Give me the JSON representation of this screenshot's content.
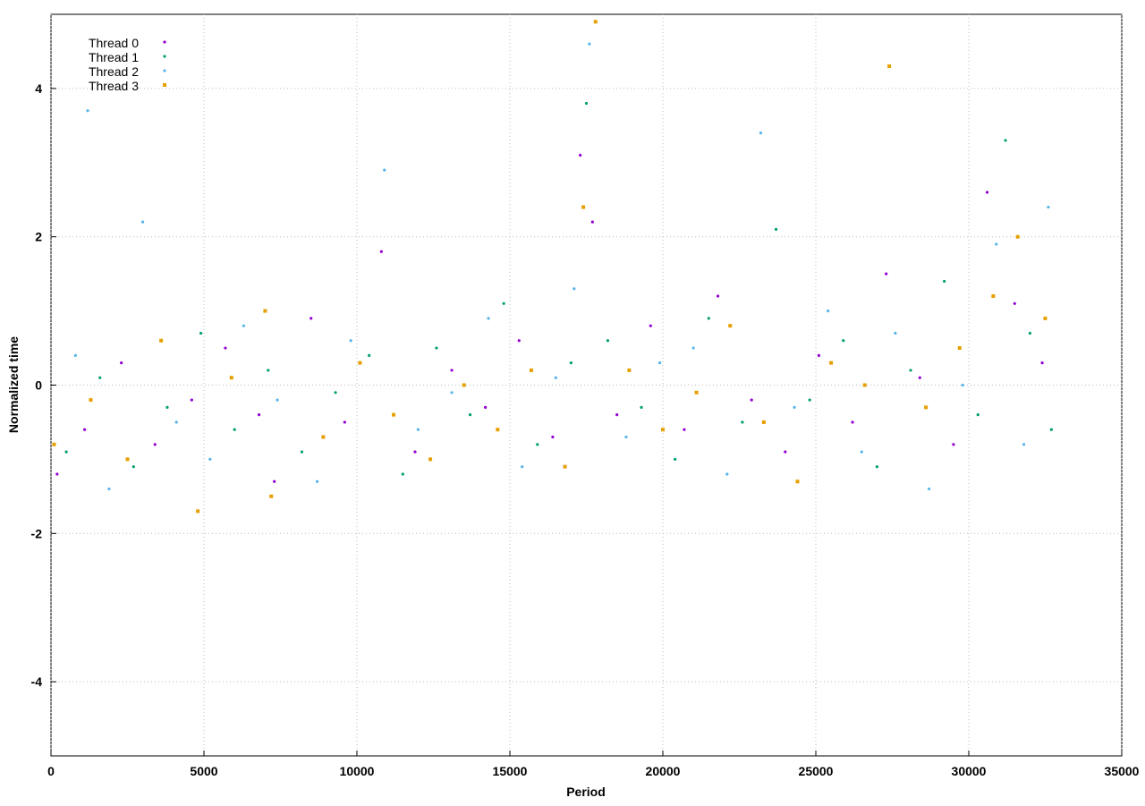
{
  "chart_data": {
    "type": "scatter",
    "xlabel": "Period",
    "ylabel": "Normalized time",
    "xlim": [
      0,
      35000
    ],
    "xticks": [
      0,
      5000,
      10000,
      15000,
      20000,
      25000,
      30000,
      35000
    ],
    "ylim": [
      -5,
      5
    ],
    "yticks": [
      -4,
      -2,
      0,
      2,
      4
    ],
    "grid": true,
    "legend": "upper-left",
    "series": [
      {
        "name": "Thread 0",
        "color": "#9400d3",
        "x": [
          200,
          1100,
          2300,
          3400,
          4600,
          5700,
          6800,
          7300,
          8500,
          9600,
          10800,
          11900,
          13100,
          14200,
          15300,
          16400,
          17300,
          17700,
          18500,
          19600,
          20700,
          21800,
          22900,
          24000,
          25100,
          26200,
          27300,
          28400,
          29500,
          30600,
          31500,
          32400
        ],
        "values": [
          -1.2,
          -0.6,
          0.3,
          -0.8,
          -0.2,
          0.5,
          -0.4,
          -1.3,
          0.9,
          -0.5,
          1.8,
          -0.9,
          0.2,
          -0.3,
          0.6,
          -0.7,
          3.1,
          2.2,
          -0.4,
          0.8,
          -0.6,
          1.2,
          -0.2,
          -0.9,
          0.4,
          -0.5,
          1.5,
          0.1,
          -0.8,
          2.6,
          1.1,
          0.3
        ]
      },
      {
        "name": "Thread 1",
        "color": "#009e73",
        "x": [
          500,
          1600,
          2700,
          3800,
          4900,
          6000,
          7100,
          8200,
          9300,
          10400,
          11500,
          12600,
          13700,
          14800,
          15900,
          17000,
          17500,
          18200,
          19300,
          20400,
          21500,
          22600,
          23700,
          24800,
          25900,
          27000,
          28100,
          29200,
          30300,
          31200,
          32000,
          32700
        ],
        "values": [
          -0.9,
          0.1,
          -1.1,
          -0.3,
          0.7,
          -0.6,
          0.2,
          -0.9,
          -0.1,
          0.4,
          -1.2,
          0.5,
          -0.4,
          1.1,
          -0.8,
          0.3,
          3.8,
          0.6,
          -0.3,
          -1.0,
          0.9,
          -0.5,
          2.1,
          -0.2,
          0.6,
          -1.1,
          0.2,
          1.4,
          -0.4,
          3.3,
          0.7,
          -0.6
        ]
      },
      {
        "name": "Thread 2",
        "color": "#56b4e9",
        "x": [
          800,
          1900,
          3000,
          4100,
          5200,
          6300,
          7400,
          8700,
          9800,
          10900,
          12000,
          13100,
          14300,
          15400,
          16500,
          17100,
          17600,
          18800,
          19900,
          21000,
          22100,
          23200,
          24300,
          25400,
          26500,
          27600,
          28700,
          29800,
          30900,
          31800,
          32600,
          1200
        ],
        "values": [
          0.4,
          -1.4,
          2.2,
          -0.5,
          -1.0,
          0.8,
          -0.2,
          -1.3,
          0.6,
          2.9,
          -0.6,
          -0.1,
          0.9,
          -1.1,
          0.1,
          1.3,
          4.6,
          -0.7,
          0.3,
          0.5,
          -1.2,
          3.4,
          -0.3,
          1.0,
          -0.9,
          0.7,
          -1.4,
          0.0,
          1.9,
          -0.8,
          2.4,
          3.7
        ]
      },
      {
        "name": "Thread 3",
        "color": "#e69f00",
        "x": [
          100,
          1300,
          2500,
          3600,
          4800,
          5900,
          7000,
          7200,
          8900,
          10100,
          11200,
          12400,
          13500,
          14600,
          15700,
          16800,
          17400,
          17800,
          18900,
          20000,
          21100,
          22200,
          23300,
          24400,
          25500,
          26600,
          27400,
          28600,
          29700,
          30800,
          31600,
          32500
        ],
        "values": [
          -0.8,
          -0.2,
          -1.0,
          0.6,
          -1.7,
          0.1,
          1.0,
          -1.5,
          -0.7,
          0.3,
          -0.4,
          -1.0,
          0.0,
          -0.6,
          0.2,
          -1.1,
          2.4,
          4.9,
          0.2,
          -0.6,
          -0.1,
          0.8,
          -0.5,
          -1.3,
          0.3,
          0.0,
          4.3,
          -0.3,
          0.5,
          1.2,
          2.0,
          0.9
        ]
      }
    ]
  }
}
